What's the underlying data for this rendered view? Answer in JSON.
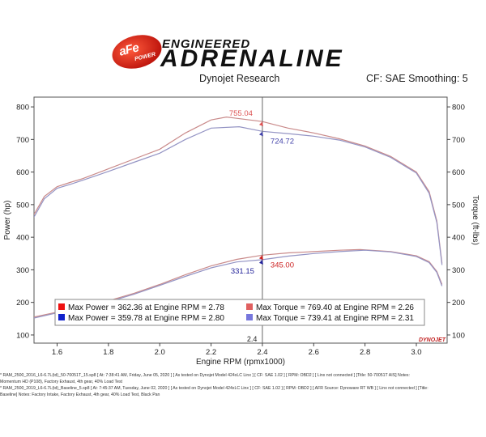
{
  "header": {
    "logo_badge": "aFe",
    "logo_badge_sub": "POWER",
    "logo_line1": "ENGINEERED",
    "logo_line2": "ADRENALINE",
    "source": "Dynojet Research",
    "correction": "CF: SAE Smoothing: 5"
  },
  "chart_data": {
    "type": "line",
    "xlabel": "Engine RPM (rpmx1000)",
    "ylabel_left": "Power (hp)",
    "ylabel_right": "Torque (ft-lbs)",
    "xlim": [
      1.51,
      3.12
    ],
    "ylim": [
      75,
      830
    ],
    "xticks": [
      "1.6",
      "1.8",
      "2.0",
      "2.2",
      "2.4",
      "2.6",
      "2.8",
      "3.0"
    ],
    "yticks_left": [
      "100",
      "200",
      "300",
      "400",
      "500",
      "600",
      "700",
      "800"
    ],
    "yticks_right": [
      "100",
      "200",
      "300",
      "400",
      "500",
      "600",
      "700",
      "800"
    ],
    "cursor": {
      "x": 2.4,
      "label": "2.4"
    },
    "watermark": "DYNOJET",
    "colors": {
      "run1": "#cc4444",
      "run2": "#7a7ac8",
      "run1_marker": "#ee2222",
      "run2_marker": "#2233bb"
    },
    "series": [
      {
        "name": "Run 1 Power",
        "color": "#c98a8a",
        "x": [
          1.51,
          1.6,
          1.7,
          1.8,
          1.9,
          2.0,
          2.1,
          2.2,
          2.3,
          2.4,
          2.5,
          2.6,
          2.7,
          2.78,
          2.9,
          3.0,
          3.05,
          3.08,
          3.1
        ],
        "y": [
          155,
          170,
          186,
          205,
          228,
          255,
          285,
          312,
          332,
          345,
          352,
          356,
          360,
          362,
          356,
          343,
          325,
          295,
          255
        ]
      },
      {
        "name": "Run 2 Power",
        "color": "#9494c4",
        "x": [
          1.51,
          1.6,
          1.7,
          1.8,
          1.9,
          2.0,
          2.1,
          2.2,
          2.3,
          2.4,
          2.5,
          2.6,
          2.7,
          2.8,
          2.9,
          3.0,
          3.05,
          3.08,
          3.1
        ],
        "y": [
          152,
          168,
          184,
          202,
          225,
          252,
          280,
          306,
          324,
          331,
          342,
          350,
          356,
          360,
          355,
          341,
          322,
          292,
          250
        ]
      },
      {
        "name": "Run 1 Torque",
        "color": "#c98a8a",
        "x": [
          1.51,
          1.55,
          1.6,
          1.65,
          1.7,
          1.8,
          1.9,
          2.0,
          2.1,
          2.2,
          2.26,
          2.3,
          2.4,
          2.5,
          2.6,
          2.7,
          2.8,
          2.9,
          3.0,
          3.05,
          3.08,
          3.1
        ],
        "y": [
          470,
          525,
          555,
          568,
          580,
          610,
          640,
          670,
          720,
          760,
          769,
          765,
          755,
          735,
          720,
          702,
          680,
          648,
          600,
          540,
          450,
          320
        ]
      },
      {
        "name": "Run 2 Torque",
        "color": "#9494c4",
        "x": [
          1.51,
          1.55,
          1.6,
          1.65,
          1.7,
          1.8,
          1.9,
          2.0,
          2.1,
          2.2,
          2.31,
          2.4,
          2.5,
          2.6,
          2.7,
          2.8,
          2.9,
          3.0,
          3.05,
          3.08,
          3.1
        ],
        "y": [
          462,
          518,
          550,
          562,
          575,
          602,
          630,
          658,
          700,
          735,
          739,
          725,
          718,
          710,
          698,
          677,
          645,
          597,
          535,
          445,
          315
        ]
      }
    ],
    "annotations": [
      {
        "x": 2.4,
        "y": 755.04,
        "label": "755.04",
        "color": "#dd5555",
        "side": "above-left"
      },
      {
        "x": 2.4,
        "y": 724.72,
        "label": "724.72",
        "color": "#4444aa",
        "side": "below-right"
      },
      {
        "x": 2.4,
        "y": 345.0,
        "label": "345.00",
        "color": "#cc2222",
        "side": "below-right"
      },
      {
        "x": 2.4,
        "y": 331.15,
        "label": "331.15",
        "color": "#222299",
        "side": "below-left"
      }
    ],
    "legend": [
      {
        "color": "#ee1111",
        "text": "Max Power = 362.36 at Engine RPM = 2.78"
      },
      {
        "color": "#1122cc",
        "text": "Max Power = 359.78 at Engine RPM = 2.80"
      },
      {
        "color": "#e06060",
        "text": "Max Torque = 769.40 at Engine RPM = 2.26"
      },
      {
        "color": "#7777dd",
        "text": "Max Torque = 739.41 at Engine RPM = 2.31"
      }
    ]
  },
  "notes": {
    "line1": "*       RAM_2500_2016_L6-6.7L(td)_50-70051T_15.sp8 [ At: 7:38:41 AM, Friday, June 05, 2020 ] [ As tested on Dynojet Model 424xLC Linx ] [ CF: SAE 1.02 ] [ RPM: OBD2 ] [ Linx not connected ] [Title: 50-70051T AIS]  Notes:",
    "line2": "Momentum HD (P108), Factory Exhaust, 4th gear, 40% Load Test",
    "line3": "*       RAM_2500_2019_L6-6.7L(td)_Baseline_5.sp8 [ At: 7:45:37 AM, Tuesday, June 02, 2020 ] [ As tested on Dynojet Model 424xLC Linx ] [ CF: SAE 1.02 ] [ RPM: OBD2 ] [ AFR Source: Dynoware RT WB ] [ Linx not connected ] [Title:",
    "line4": "Baseline]  Notes: Factory Intake, Factory Exhaust, 4th gear, 40% Load Test, Black Pan"
  }
}
